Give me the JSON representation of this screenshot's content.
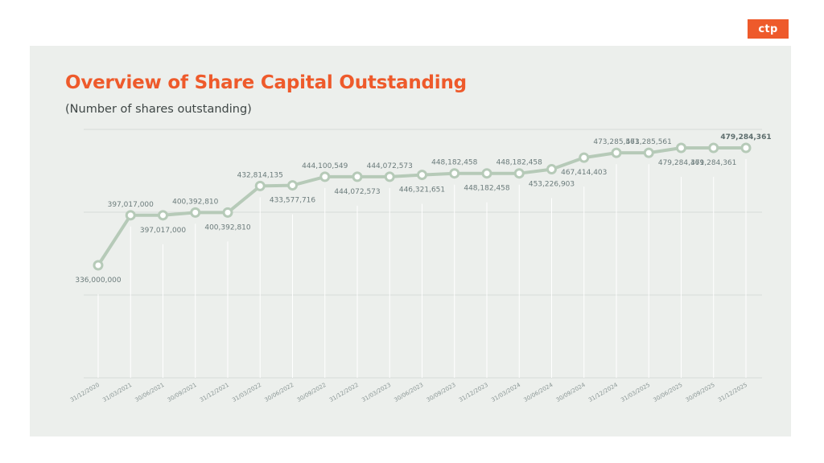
{
  "logo": {
    "text": "ctp"
  },
  "colors": {
    "accent": "#ee5a2b",
    "line": "#b6cab8",
    "panel": "#ecefec",
    "grid": "#d6dbd7"
  },
  "chart_data": {
    "type": "line",
    "title": "Overview of Share Capital Outstanding",
    "subtitle": "(Number of shares outstanding)",
    "categories": [
      "31/12/2020",
      "31/03/2021",
      "30/06/2021",
      "30/09/2021",
      "31/12/2021",
      "31/03/2022",
      "30/06/2022",
      "30/09/2022",
      "31/12/2022",
      "31/03/2023",
      "30/06/2023",
      "30/09/2023",
      "31/12/2023",
      "31/03/2024",
      "30/06/2024",
      "30/09/2024",
      "31/12/2024",
      "31/03/2025",
      "30/06/2025",
      "30/09/2025",
      "31/12/2025"
    ],
    "values": [
      336000000,
      397017000,
      397017000,
      400392810,
      400392810,
      432814135,
      433577716,
      444100549,
      444072573,
      444072573,
      446321651,
      448182458,
      448182458,
      448182458,
      453226903,
      467414403,
      473285561,
      473285561,
      479284361,
      479284361,
      479284361
    ],
    "data_labels": [
      "336,000,000",
      "397,017,000",
      "397,017,000",
      "400,392,810",
      "400,392,810",
      "432,814,135",
      "433,577,716",
      "444,100,549",
      "444,072,573",
      "444,072,573",
      "446,321,651",
      "448,182,458",
      "448,182,458",
      "448,182,458",
      "453,226,903",
      "467,414,403",
      "473,285,561",
      "473,285,561",
      "479,284,361",
      "479,284,361",
      "479,284,361"
    ],
    "label_positions": [
      "below",
      "above",
      "below",
      "above",
      "below",
      "above",
      "below",
      "above",
      "below",
      "above",
      "below",
      "above",
      "below",
      "above",
      "below",
      "below",
      "above",
      "above",
      "below",
      "below",
      "above"
    ],
    "highlight_last_label": true,
    "xlabel": "",
    "ylabel": "",
    "grid": true,
    "legend": "none"
  }
}
